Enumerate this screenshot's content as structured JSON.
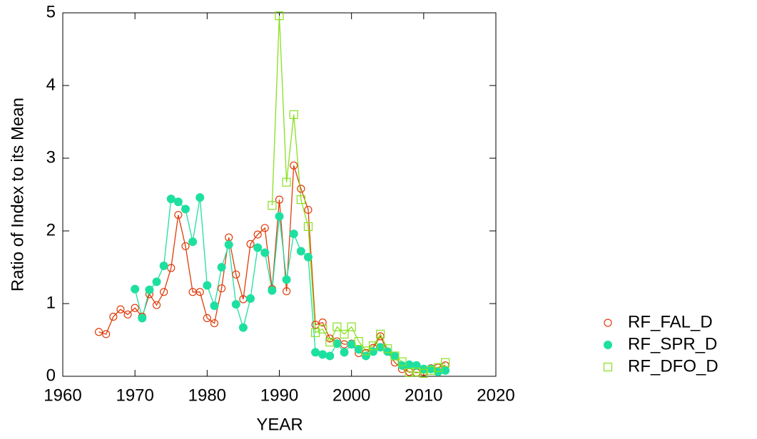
{
  "chart_data": {
    "type": "line",
    "xlabel": "YEAR",
    "ylabel": "Ratio of Index to its Mean",
    "xlim": [
      1960,
      2020
    ],
    "xticks": [
      1960,
      1970,
      1980,
      1990,
      2000,
      2010,
      2020
    ],
    "ylim": [
      0,
      5
    ],
    "yticks": [
      0,
      1,
      2,
      3,
      4,
      5
    ],
    "legend": "lower right outside",
    "series": [
      {
        "name": "RF_FAL_D",
        "color": "#e03c0a",
        "marker": "open-circle",
        "x": [
          1965,
          1966,
          1967,
          1968,
          1969,
          1970,
          1971,
          1972,
          1973,
          1974,
          1975,
          1976,
          1977,
          1978,
          1979,
          1980,
          1981,
          1982,
          1983,
          1984,
          1985,
          1986,
          1987,
          1988,
          1989,
          1990,
          1991,
          1992,
          1993,
          1994,
          1995,
          1996,
          1997,
          1998,
          1999,
          2000,
          2001,
          2002,
          2003,
          2004,
          2005,
          2006,
          2007,
          2008,
          2009,
          2010,
          2011,
          2012,
          2013
        ],
        "values": [
          0.61,
          0.58,
          0.82,
          0.92,
          0.85,
          0.94,
          0.82,
          1.13,
          0.98,
          1.16,
          1.49,
          2.22,
          1.79,
          1.16,
          1.16,
          0.8,
          0.73,
          1.21,
          1.91,
          1.4,
          1.06,
          1.82,
          1.95,
          2.04,
          1.2,
          2.43,
          1.17,
          2.9,
          2.58,
          2.29,
          0.71,
          0.74,
          0.52,
          0.48,
          0.44,
          0.45,
          0.32,
          0.32,
          0.39,
          0.55,
          0.34,
          0.19,
          0.1,
          0.06,
          0.05,
          0.06,
          0.11,
          0.12,
          0.15
        ]
      },
      {
        "name": "RF_SPR_D",
        "color": "#1de0a0",
        "marker": "filled-circle",
        "x": [
          1970,
          1971,
          1972,
          1973,
          1974,
          1975,
          1976,
          1977,
          1978,
          1979,
          1980,
          1981,
          1982,
          1983,
          1984,
          1985,
          1986,
          1987,
          1988,
          1989,
          1990,
          1991,
          1992,
          1993,
          1994,
          1995,
          1996,
          1997,
          1998,
          1999,
          2000,
          2001,
          2002,
          2003,
          2004,
          2005,
          2006,
          2007,
          2008,
          2009,
          2010,
          2011,
          2012,
          2013
        ],
        "values": [
          1.2,
          0.8,
          1.19,
          1.3,
          1.52,
          2.44,
          2.4,
          2.3,
          1.85,
          2.46,
          1.25,
          0.97,
          1.5,
          1.81,
          0.99,
          0.67,
          1.07,
          1.77,
          1.7,
          1.18,
          2.2,
          1.33,
          1.96,
          1.72,
          1.64,
          0.33,
          0.3,
          0.28,
          0.45,
          0.33,
          0.44,
          0.37,
          0.28,
          0.34,
          0.4,
          0.34,
          0.28,
          0.15,
          0.16,
          0.15,
          0.1,
          0.1,
          0.06,
          0.08
        ]
      },
      {
        "name": "RF_DFO_D",
        "color": "#88e020",
        "marker": "open-square",
        "x": [
          1989,
          1990,
          1991,
          1992,
          1993,
          1994,
          1995,
          1996,
          1997,
          1998,
          1999,
          2000,
          2001,
          2002,
          2003,
          2004,
          2005,
          2006,
          2007,
          2008,
          2009,
          2010,
          2011,
          2012,
          2013
        ],
        "values": [
          2.35,
          4.96,
          2.67,
          3.6,
          2.43,
          2.06,
          0.6,
          0.65,
          0.47,
          0.68,
          0.58,
          0.68,
          0.48,
          0.35,
          0.42,
          0.58,
          0.38,
          0.28,
          0.2,
          0.05,
          0.06,
          0.04,
          0.08,
          0.12,
          0.19
        ]
      }
    ]
  }
}
